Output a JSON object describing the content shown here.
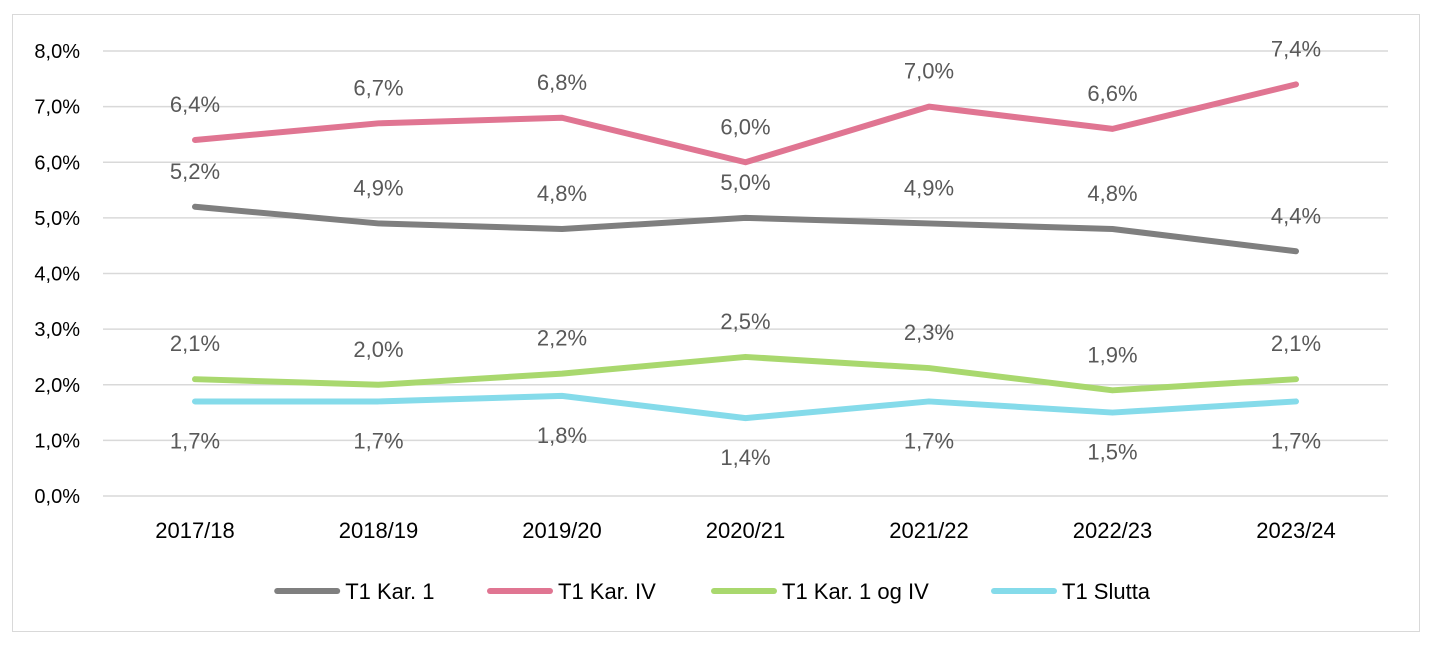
{
  "chart_data": {
    "type": "line",
    "title": "",
    "xlabel": "",
    "ylabel": "",
    "categories": [
      "2017/18",
      "2018/19",
      "2019/20",
      "2020/21",
      "2021/22",
      "2022/23",
      "2023/24"
    ],
    "ylim": [
      0,
      8
    ],
    "yticks": [
      0,
      1,
      2,
      3,
      4,
      5,
      6,
      7,
      8
    ],
    "ytick_labels": [
      "0,0%",
      "1,0%",
      "2,0%",
      "3,0%",
      "4,0%",
      "5,0%",
      "6,0%",
      "7,0%",
      "8,0%"
    ],
    "grid": "horizontal",
    "legend_position": "bottom",
    "series": [
      {
        "name": "T1 Kar. 1",
        "color": "#7f7f7f",
        "values": [
          5.2,
          4.9,
          4.8,
          5.0,
          4.9,
          4.8,
          4.4
        ],
        "labels": [
          "5,2%",
          "4,9%",
          "4,8%",
          "5,0%",
          "4,9%",
          "4,8%",
          "4,4%"
        ],
        "label_position": "above"
      },
      {
        "name": "T1 Kar. IV",
        "color": "#e07592",
        "values": [
          6.4,
          6.7,
          6.8,
          6.0,
          7.0,
          6.6,
          7.4
        ],
        "labels": [
          "6,4%",
          "6,7%",
          "6,8%",
          "6,0%",
          "7,0%",
          "6,6%",
          "7,4%"
        ],
        "label_position": "above"
      },
      {
        "name": "T1 Kar. 1 og IV",
        "color": "#a9d86e",
        "values": [
          2.1,
          2.0,
          2.2,
          2.5,
          2.3,
          1.9,
          2.1
        ],
        "labels": [
          "2,1%",
          "2,0%",
          "2,2%",
          "2,5%",
          "2,3%",
          "1,9%",
          "2,1%"
        ],
        "label_position": "above"
      },
      {
        "name": "T1 Slutta",
        "color": "#85dbea",
        "values": [
          1.7,
          1.7,
          1.8,
          1.4,
          1.7,
          1.5,
          1.7
        ],
        "labels": [
          "1,7%",
          "1,7%",
          "1,8%",
          "1,4%",
          "1,7%",
          "1,5%",
          "1,7%"
        ],
        "label_position": "below"
      }
    ]
  }
}
